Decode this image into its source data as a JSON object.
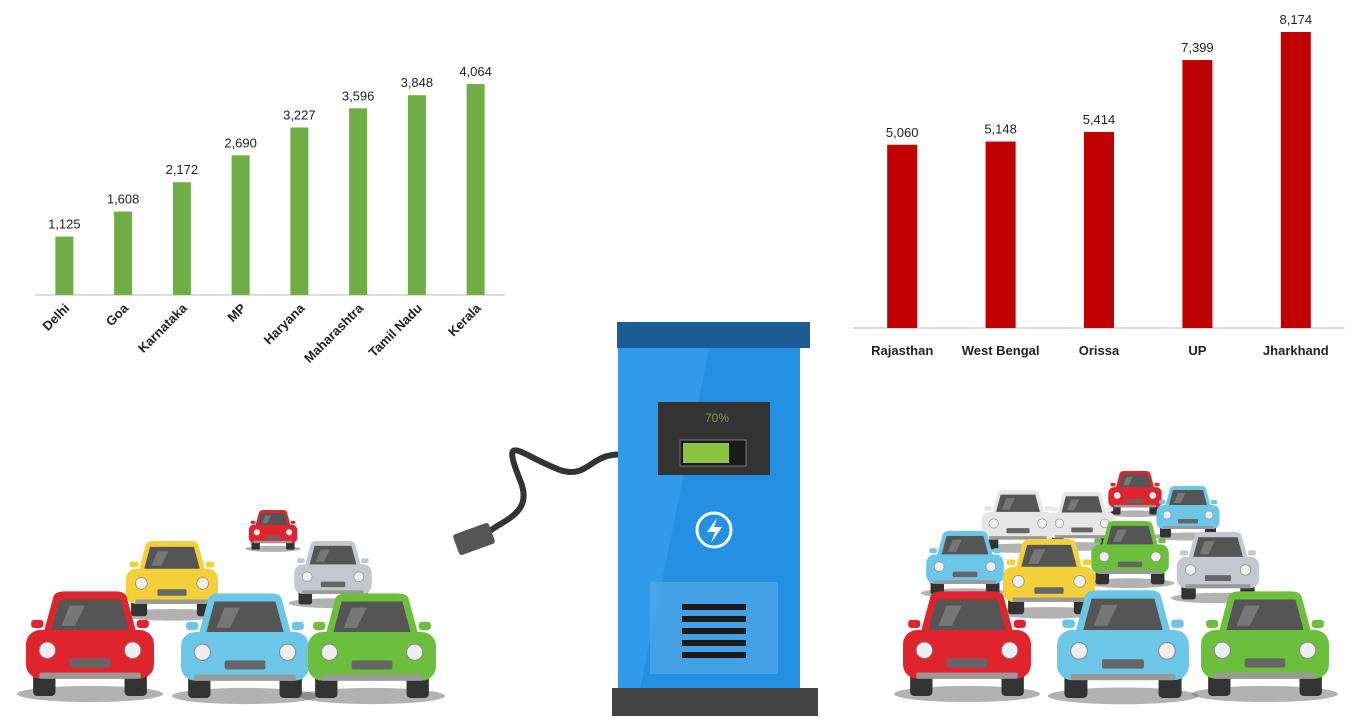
{
  "chart_data": [
    {
      "type": "bar",
      "color": "#70ad47",
      "categories": [
        "Delhi",
        "Goa",
        "Karnataka",
        "MP",
        "Haryana",
        "Maharashtra",
        "Tamil Nadu",
        "Kerala"
      ],
      "values": [
        1125,
        1608,
        2172,
        2690,
        3227,
        3596,
        3848,
        4064
      ],
      "value_labels": [
        "1,125",
        "1,608",
        "2,172",
        "2,690",
        "3,227",
        "3,596",
        "3,848",
        "4,064"
      ]
    },
    {
      "type": "bar",
      "color": "#c00000",
      "categories": [
        "Rajasthan",
        "West Bengal",
        "Orissa",
        "UP",
        "Jharkhand"
      ],
      "values": [
        5060,
        5148,
        5414,
        7399,
        8174
      ],
      "value_labels": [
        "5,060",
        "5,148",
        "5,414",
        "7,399",
        "8,174"
      ]
    }
  ],
  "illustration": {
    "battery_label": "70%"
  }
}
